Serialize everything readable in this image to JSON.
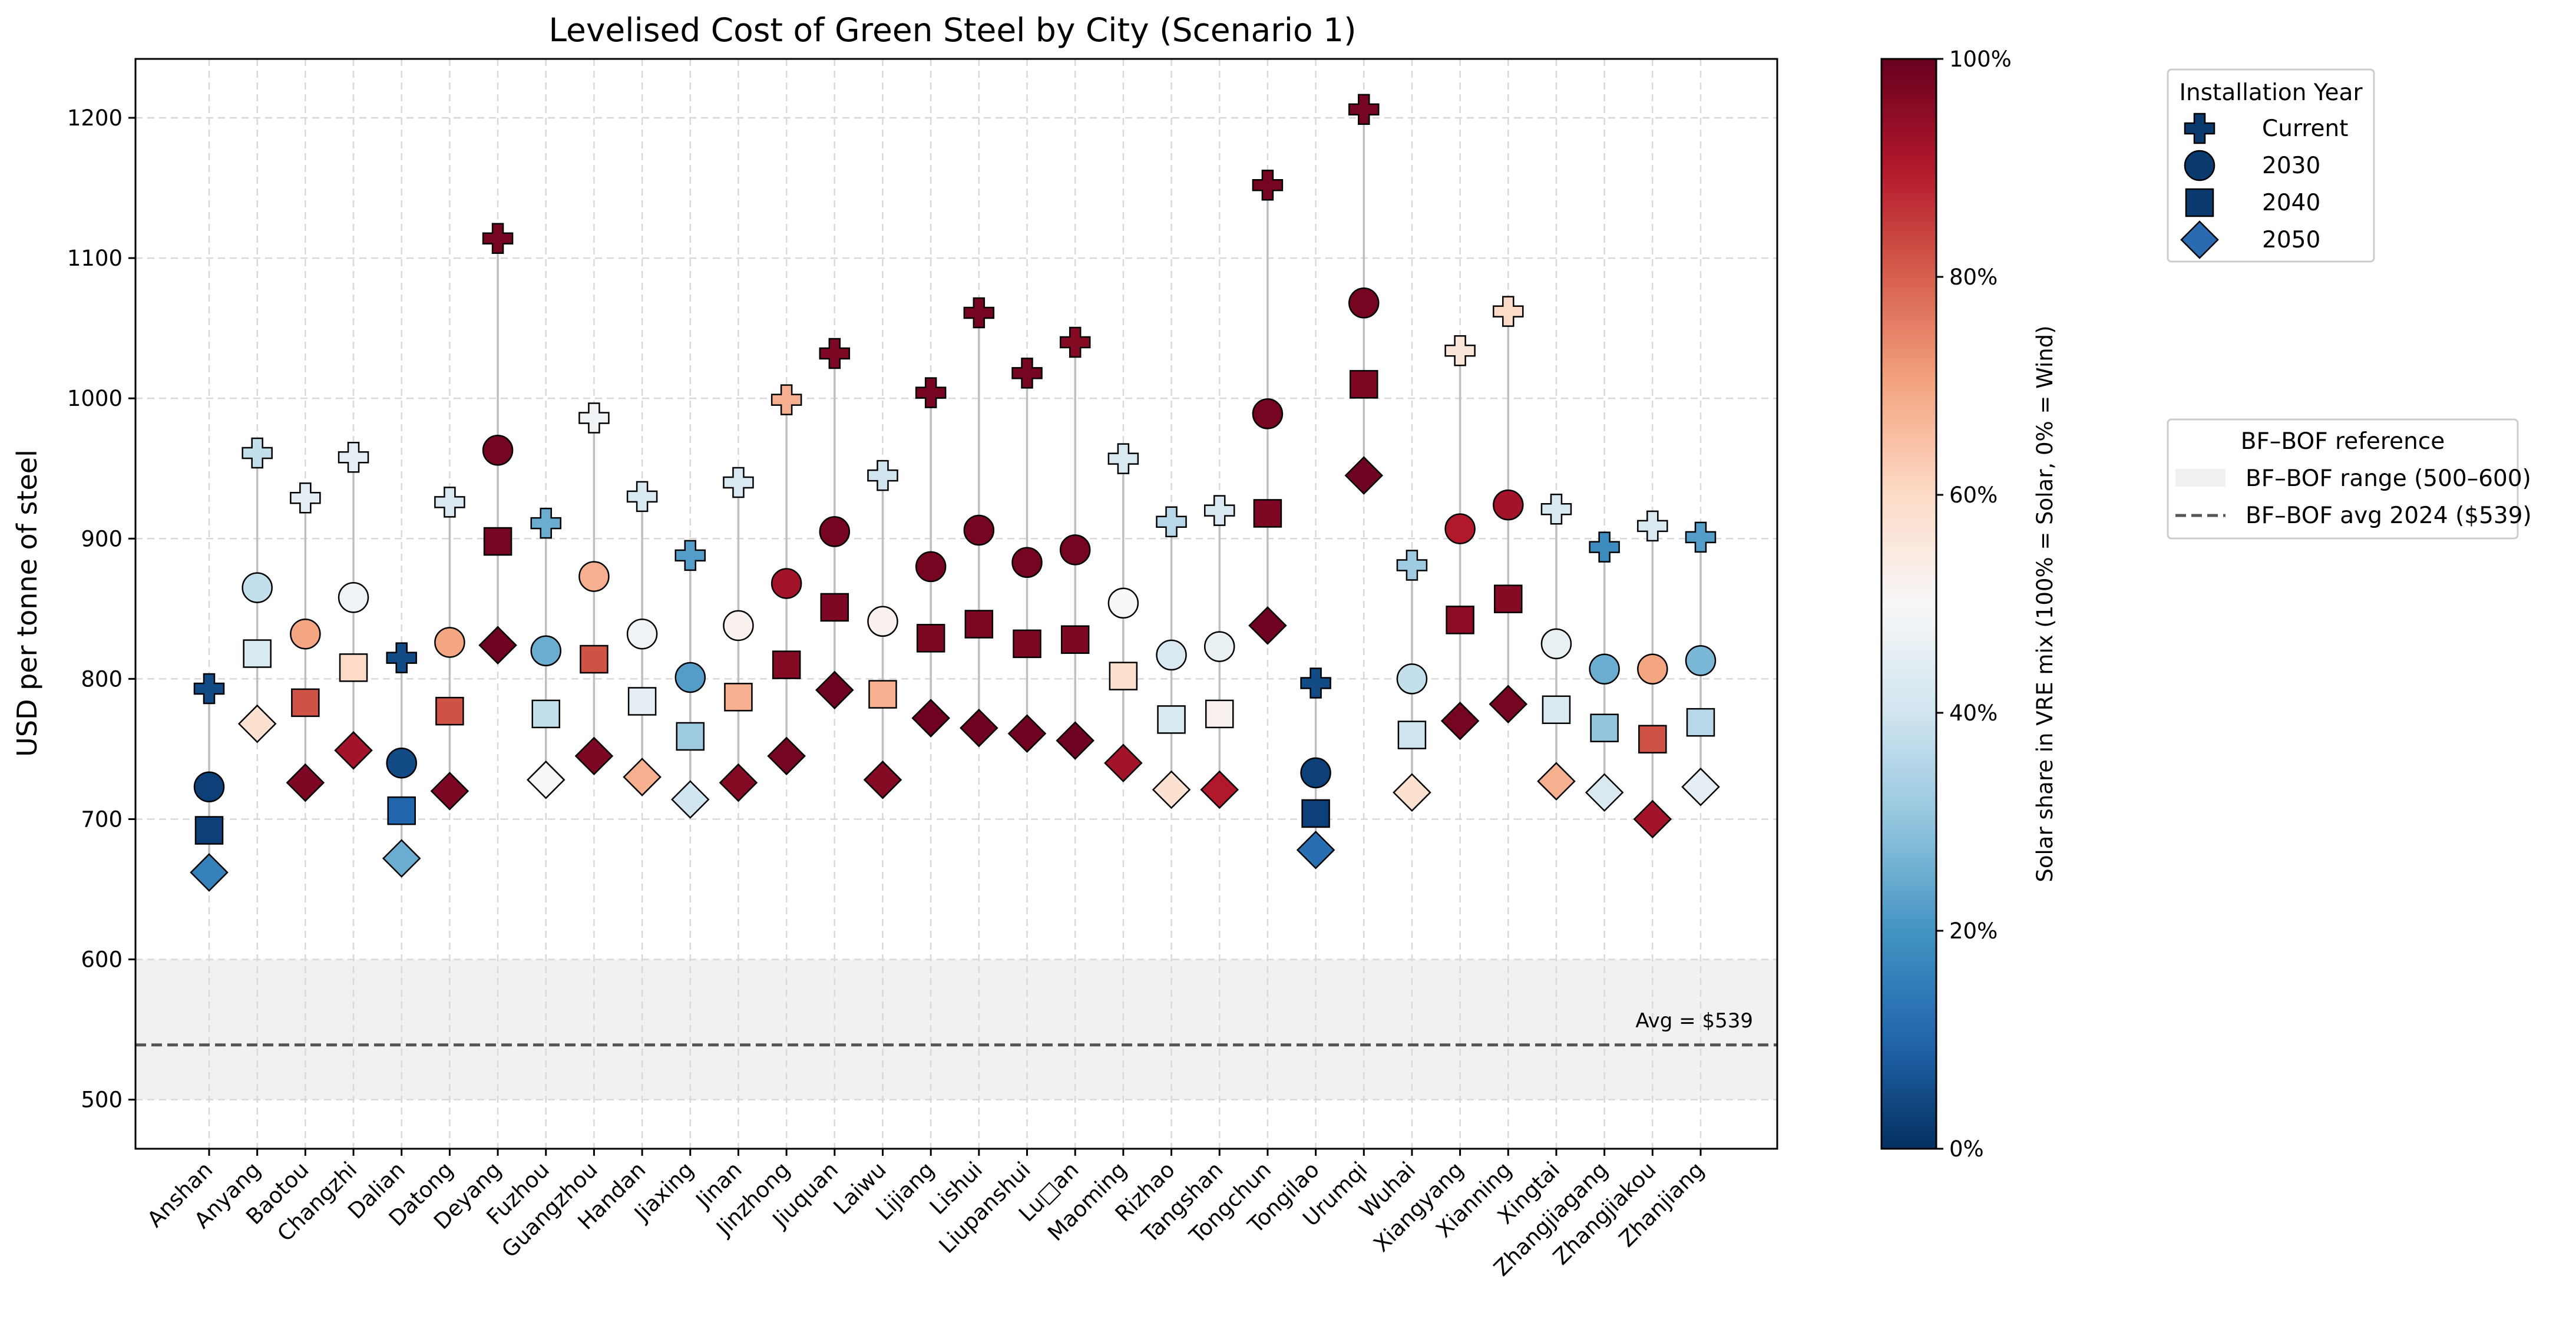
{
  "chart_data": {
    "type": "scatter",
    "title": "Levelised Cost of Green Steel by City (Scenario 1)",
    "ylabel": "USD per tonne of steel",
    "xlabel": "",
    "ylim": [
      465,
      1242
    ],
    "yticks": [
      500,
      600,
      700,
      800,
      900,
      1000,
      1100,
      1200
    ],
    "grid": true,
    "categories": [
      "Anshan",
      "Anyang",
      "Baotou",
      "Changzhi",
      "Dalian",
      "Datong",
      "Deyang",
      "Fuzhou",
      "Guangzhou",
      "Handan",
      "Jiaxing",
      "Jinan",
      "Jinzhong",
      "Jiuquan",
      "Laiwu",
      "Lijiang",
      "Lishui",
      "Liupanshui",
      "Lu□an",
      "Maoming",
      "Rizhao",
      "Tangshan",
      "Tongchun",
      "Tongilao",
      "Urumqi",
      "Wuhai",
      "Xiangyang",
      "Xianning",
      "Xingtai",
      "Zhangjiagang",
      "Zhangjiakou",
      "Zhanjiang"
    ],
    "series": [
      {
        "name": "Current",
        "marker": "plus",
        "values": [
          793,
          961,
          929,
          958,
          815,
          926,
          1114,
          911,
          986,
          930,
          888,
          940,
          999,
          1032,
          945,
          1004,
          1061,
          1018,
          1040,
          957,
          912,
          920,
          1152,
          797,
          1206,
          881,
          1034,
          1062,
          921,
          894,
          909,
          901
        ],
        "solar_share": [
          0.05,
          0.38,
          0.45,
          0.45,
          0.05,
          0.42,
          0.98,
          0.25,
          0.48,
          0.42,
          0.22,
          0.42,
          0.68,
          0.97,
          0.4,
          0.98,
          0.98,
          0.98,
          0.96,
          0.42,
          0.36,
          0.42,
          0.98,
          0.05,
          0.98,
          0.32,
          0.56,
          0.6,
          0.42,
          0.18,
          0.42,
          0.22
        ]
      },
      {
        "name": "2030",
        "marker": "circle",
        "values": [
          723,
          865,
          832,
          858,
          740,
          826,
          963,
          820,
          873,
          832,
          801,
          838,
          868,
          905,
          841,
          880,
          906,
          883,
          892,
          854,
          817,
          823,
          989,
          733,
          1068,
          800,
          907,
          924,
          825,
          807,
          807,
          813
        ],
        "solar_share": [
          0.03,
          0.38,
          0.7,
          0.48,
          0.05,
          0.7,
          0.98,
          0.25,
          0.68,
          0.48,
          0.22,
          0.52,
          0.92,
          0.98,
          0.52,
          0.98,
          0.98,
          0.98,
          0.98,
          0.5,
          0.42,
          0.46,
          0.98,
          0.03,
          0.98,
          0.38,
          0.9,
          0.92,
          0.46,
          0.25,
          0.7,
          0.27
        ]
      },
      {
        "name": "2040",
        "marker": "square",
        "values": [
          692,
          818,
          783,
          808,
          706,
          777,
          898,
          775,
          814,
          784,
          759,
          787,
          810,
          851,
          789,
          829,
          839,
          825,
          828,
          802,
          771,
          775,
          918,
          704,
          1010,
          760,
          842,
          857,
          778,
          765,
          757,
          769
        ],
        "solar_share": [
          0.03,
          0.42,
          0.82,
          0.6,
          0.1,
          0.82,
          0.98,
          0.38,
          0.82,
          0.45,
          0.32,
          0.68,
          0.96,
          0.97,
          0.68,
          0.97,
          0.97,
          0.97,
          0.97,
          0.58,
          0.42,
          0.52,
          0.97,
          0.03,
          0.97,
          0.4,
          0.95,
          0.96,
          0.42,
          0.3,
          0.82,
          0.36
        ]
      },
      {
        "name": "2050",
        "marker": "diamond",
        "values": [
          662,
          768,
          726,
          749,
          672,
          720,
          824,
          728,
          745,
          730,
          714,
          726,
          745,
          792,
          728,
          772,
          765,
          761,
          756,
          740,
          721,
          721,
          838,
          678,
          945,
          719,
          770,
          782,
          727,
          719,
          700,
          723
        ],
        "solar_share": [
          0.16,
          0.58,
          0.97,
          0.92,
          0.25,
          0.97,
          0.99,
          0.5,
          0.97,
          0.68,
          0.4,
          0.96,
          0.98,
          0.99,
          0.96,
          0.99,
          0.99,
          0.99,
          0.99,
          0.92,
          0.58,
          0.9,
          0.99,
          0.12,
          0.99,
          0.58,
          0.98,
          0.98,
          0.68,
          0.42,
          0.92,
          0.45
        ]
      }
    ],
    "reference": {
      "band_range": [
        500,
        600
      ],
      "avg": 539,
      "annotation": "Avg = $539"
    },
    "legend_year": {
      "title": "Installation Year",
      "placement": "right-top",
      "items": [
        {
          "label": "Current",
          "marker": "plus"
        },
        {
          "label": "2030",
          "marker": "circle"
        },
        {
          "label": "2040",
          "marker": "square"
        },
        {
          "label": "2050",
          "marker": "diamond"
        }
      ]
    },
    "legend_ref": {
      "title": "BF–BOF reference",
      "placement": "right",
      "items": [
        {
          "label": "BF–BOF range (500–600)",
          "kind": "band"
        },
        {
          "label": "BF–BOF avg 2024 ($539)",
          "kind": "dashed"
        }
      ]
    },
    "colorbar": {
      "label": "Solar share in VRE mix (100% = Solar, 0% = Wind)",
      "ticks": [
        "0%",
        "20%",
        "40%",
        "60%",
        "80%",
        "100%"
      ],
      "colormap": "RdBu_r"
    }
  }
}
